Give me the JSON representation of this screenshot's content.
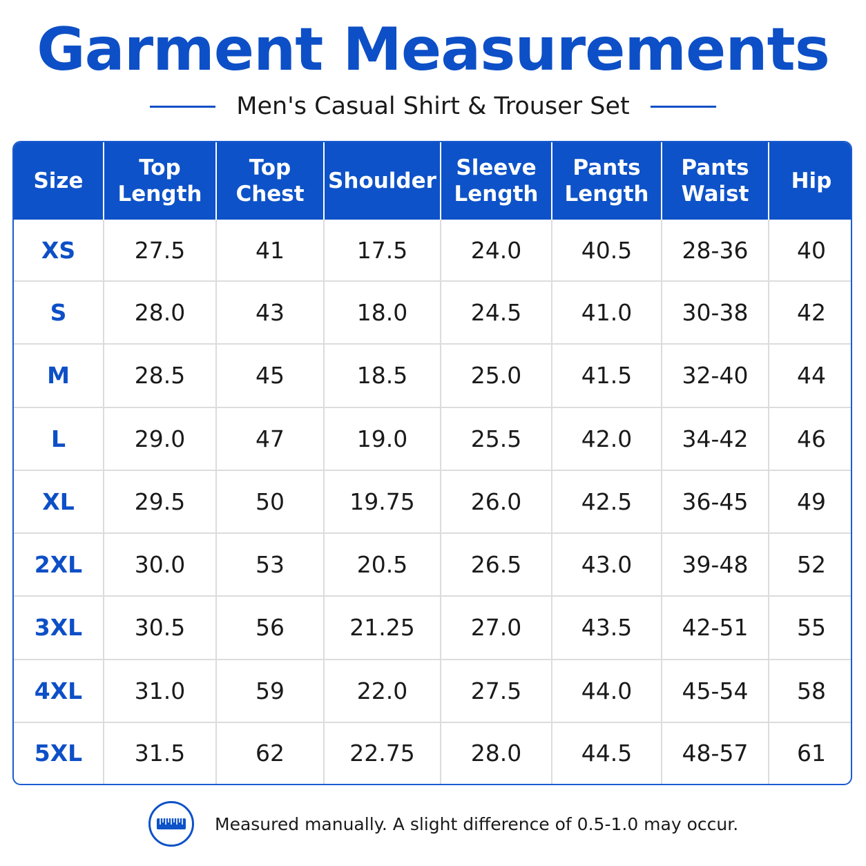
{
  "title": "Garment Measurements",
  "subtitle": "Men's Casual Shirt & Trouser Set",
  "accent_color": "#0d52c8",
  "table": {
    "headers": [
      [
        "Size"
      ],
      [
        "Top",
        "Length"
      ],
      [
        "Top",
        "Chest"
      ],
      [
        "Shoulder"
      ],
      [
        "Sleeve",
        "Length"
      ],
      [
        "Pants",
        "Length"
      ],
      [
        "Pants",
        "Waist"
      ],
      [
        "Hip"
      ]
    ],
    "rows": [
      [
        "XS",
        "27.5",
        "41",
        "17.5",
        "24.0",
        "40.5",
        "28-36",
        "40"
      ],
      [
        "S",
        "28.0",
        "43",
        "18.0",
        "24.5",
        "41.0",
        "30-38",
        "42"
      ],
      [
        "M",
        "28.5",
        "45",
        "18.5",
        "25.0",
        "41.5",
        "32-40",
        "44"
      ],
      [
        "L",
        "29.0",
        "47",
        "19.0",
        "25.5",
        "42.0",
        "34-42",
        "46"
      ],
      [
        "XL",
        "29.5",
        "50",
        "19.75",
        "26.0",
        "42.5",
        "36-45",
        "49"
      ],
      [
        "2XL",
        "30.0",
        "53",
        "20.5",
        "26.5",
        "43.0",
        "39-48",
        "52"
      ],
      [
        "3XL",
        "30.5",
        "56",
        "21.25",
        "27.0",
        "43.5",
        "42-51",
        "55"
      ],
      [
        "4XL",
        "31.0",
        "59",
        "22.0",
        "27.5",
        "44.0",
        "45-54",
        "58"
      ],
      [
        "5XL",
        "31.5",
        "62",
        "22.75",
        "28.0",
        "44.5",
        "48-57",
        "61"
      ]
    ]
  },
  "footer": {
    "icon": "ruler-icon",
    "note": "Measured manually. A slight difference of 0.5-1.0 may occur."
  }
}
